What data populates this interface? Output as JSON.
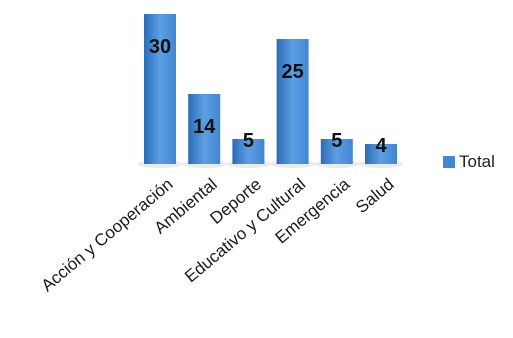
{
  "chart_data": {
    "type": "bar",
    "categories": [
      "Acción y Cooperación",
      "Ambiental",
      "Deporte",
      "Educativo y Cultural",
      "Emergencia",
      "Salud"
    ],
    "values": [
      30,
      14,
      5,
      25,
      5,
      4
    ],
    "series": [
      {
        "name": "Total",
        "values": [
          30,
          14,
          5,
          25,
          5,
          4
        ]
      }
    ],
    "ylim": [
      0,
      30
    ],
    "grid": false,
    "legend_position": "right",
    "data_labels": true,
    "colors": {
      "bar": "#3f86d4",
      "bar_light": "#5d9fe2",
      "bar_dark": "#2b6cb7",
      "label": "#111111"
    }
  }
}
